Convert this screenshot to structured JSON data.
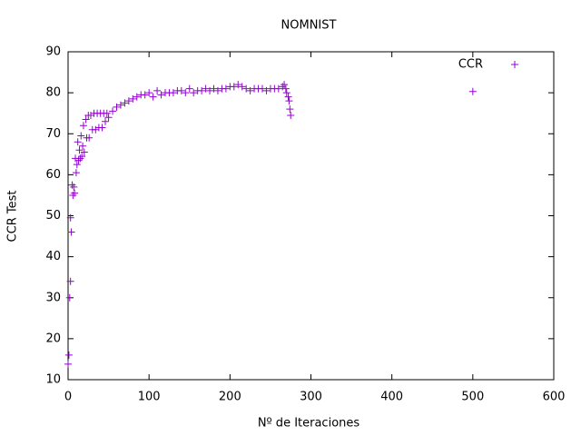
{
  "chart_data": {
    "type": "scatter",
    "title": "NOMNIST",
    "x_label": "Nº de Iteraciones",
    "y_label": "CCR Test",
    "xlim": [
      0,
      600
    ],
    "xticks": [
      0,
      100,
      200,
      300,
      400,
      500,
      600
    ],
    "ylim": [
      10,
      90
    ],
    "yticks": [
      10,
      20,
      30,
      40,
      50,
      60,
      70,
      80,
      90
    ],
    "legend_position": "top-right",
    "series": [
      {
        "name": "CCR",
        "color": "#9400d3",
        "x": [
          0,
          1,
          2,
          3,
          3,
          4,
          5,
          6,
          7,
          8,
          9,
          10,
          11,
          12,
          13,
          14,
          15,
          16,
          17,
          18,
          19,
          20,
          22,
          23,
          25,
          26,
          28,
          30,
          32,
          34,
          36,
          38,
          40,
          42,
          44,
          46,
          48,
          50,
          55,
          60,
          65,
          70,
          75,
          80,
          85,
          90,
          95,
          100,
          105,
          110,
          115,
          120,
          125,
          130,
          135,
          140,
          145,
          150,
          155,
          160,
          165,
          170,
          175,
          180,
          185,
          190,
          195,
          200,
          205,
          210,
          215,
          220,
          225,
          230,
          235,
          240,
          245,
          250,
          255,
          260,
          265,
          267,
          269,
          270,
          272,
          273,
          274,
          275,
          500
        ],
        "values": [
          13.8,
          16,
          30,
          34,
          49.5,
          46,
          57.5,
          55,
          57,
          55.5,
          64,
          60.5,
          62.5,
          68,
          63.5,
          66,
          64,
          69.5,
          64.5,
          67,
          72,
          65.5,
          73.5,
          69,
          74.5,
          69,
          74.5,
          71,
          75,
          71,
          75,
          71.5,
          75,
          71.5,
          75,
          73,
          75,
          74,
          75.5,
          76.5,
          77,
          77.5,
          78,
          78.5,
          79,
          79.5,
          79.5,
          80,
          79,
          80.5,
          79.5,
          80,
          80,
          80,
          80.5,
          80.5,
          80,
          81,
          80,
          80.5,
          80.5,
          81,
          80.5,
          81,
          80.5,
          81,
          81,
          81.5,
          81.5,
          82,
          81.5,
          81,
          80.5,
          81,
          81,
          81,
          80.5,
          81,
          81,
          81,
          81.5,
          82,
          81,
          80,
          79,
          78,
          76,
          74.5,
          80.3
        ]
      }
    ]
  }
}
